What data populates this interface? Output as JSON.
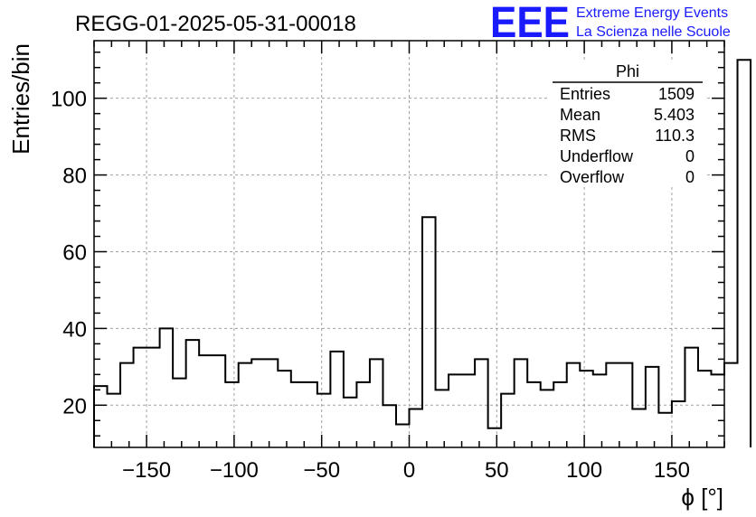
{
  "header": {
    "run_title": "REGG-01-2025-05-31-00018",
    "logo_letters": "EEE",
    "logo_line1": "Extreme Energy Events",
    "logo_line2": "La Scienza nelle Scuole",
    "logo_color": "#1a1aff"
  },
  "stats_box": {
    "name": "Phi",
    "rows": [
      {
        "label": "Entries",
        "value": "1509"
      },
      {
        "label": "Mean",
        "value": "5.403"
      },
      {
        "label": "RMS",
        "value": "110.3"
      },
      {
        "label": "Underflow",
        "value": "0"
      },
      {
        "label": "Overflow",
        "value": "0"
      }
    ]
  },
  "chart_data": {
    "type": "histogram",
    "title": "REGG-01-2025-05-31-00018",
    "xlabel": "ϕ [°]",
    "ylabel": "Entries/bin",
    "xlim": [
      -180,
      180
    ],
    "ylim": [
      9,
      115
    ],
    "bin_width": 7.5,
    "bin_edges_start": -180,
    "values": [
      25,
      23,
      31,
      35,
      35,
      40,
      27,
      37,
      33,
      33,
      26,
      31,
      32,
      32,
      29,
      26,
      26,
      23,
      34,
      22,
      26,
      32,
      20,
      15,
      19,
      69,
      24,
      28,
      28,
      32,
      14,
      23,
      32,
      26,
      24,
      26,
      31,
      29,
      28,
      31,
      31,
      19,
      30,
      18,
      21,
      35,
      29,
      28,
      31,
      110
    ],
    "x_ticks": [
      -150,
      -100,
      -50,
      0,
      50,
      100,
      150
    ],
    "x_tick_labels": [
      "−150",
      "−100",
      "−50",
      "0",
      "50",
      "100",
      "150"
    ],
    "y_ticks": [
      20,
      40,
      60,
      80,
      100
    ],
    "y_tick_labels": [
      "20",
      "40",
      "60",
      "80",
      "100"
    ],
    "grid": true,
    "line_color": "#000000",
    "grid_color": "#a0a0a0"
  }
}
